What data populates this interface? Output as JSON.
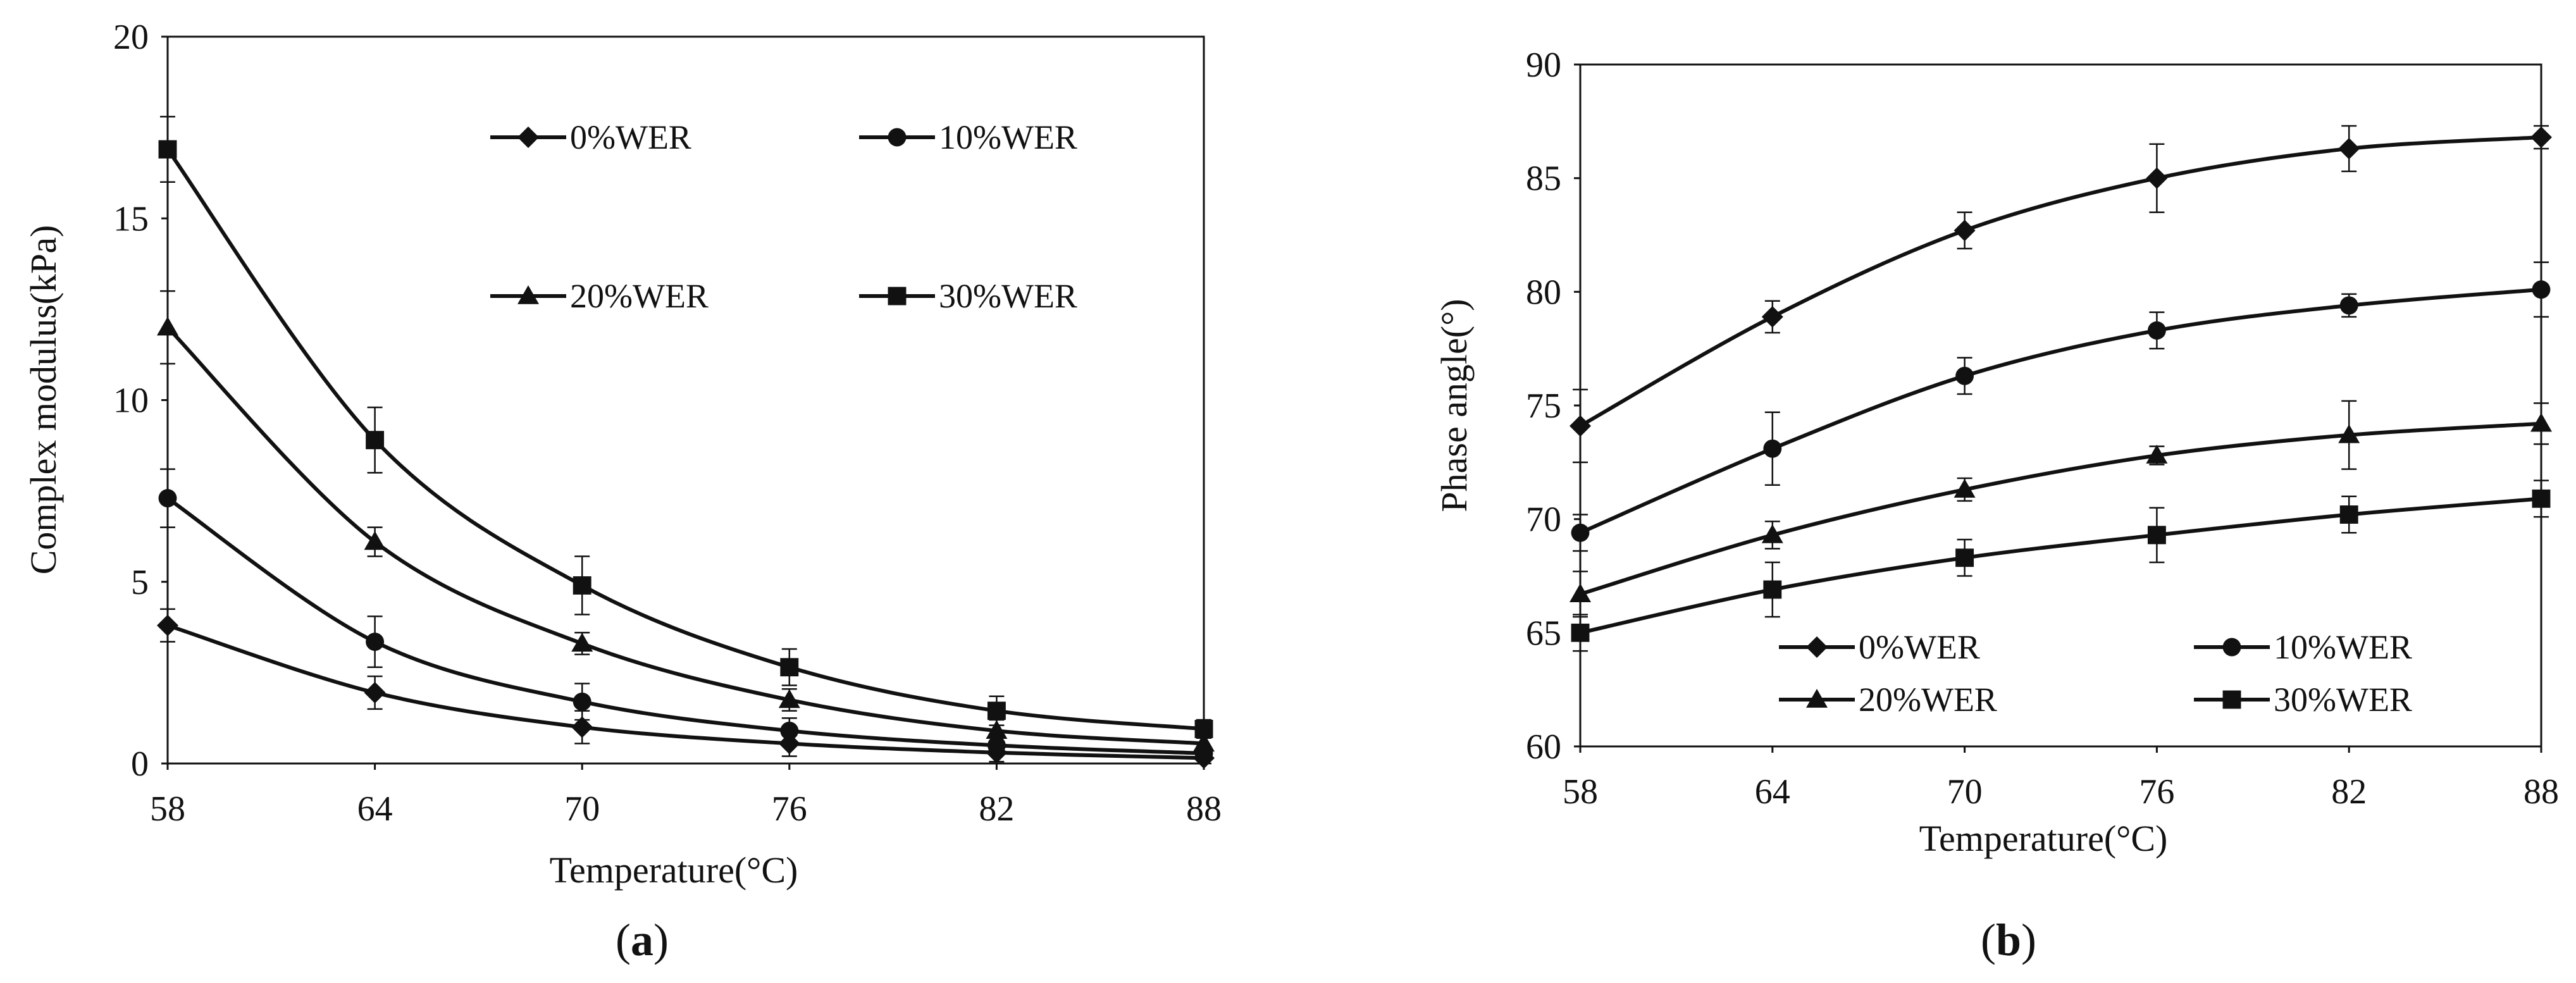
{
  "chart_data": [
    {
      "panel": "a",
      "type": "line",
      "xlabel": "Temperature(°C)",
      "ylabel": "Complex modulus(kPa)",
      "x": [
        58,
        64,
        70,
        76,
        82,
        88
      ],
      "xlim": [
        58,
        88
      ],
      "ylim": [
        0,
        20
      ],
      "yticks": [
        0,
        5,
        10,
        15,
        20
      ],
      "legend_position": "top-right",
      "series": [
        {
          "name": "0%WER",
          "marker": "diamond",
          "values": [
            3.8,
            1.95,
            1.0,
            0.55,
            0.3,
            0.15
          ],
          "errors": [
            0.45,
            0.45,
            0.45,
            0.35,
            0.25,
            0.15
          ]
        },
        {
          "name": "10%WER",
          "marker": "circle",
          "values": [
            7.3,
            3.35,
            1.7,
            0.9,
            0.5,
            0.28
          ],
          "errors": [
            0.8,
            0.7,
            0.5,
            0.35,
            0.25,
            0.15
          ]
        },
        {
          "name": "20%WER",
          "marker": "triangle",
          "values": [
            12.0,
            6.1,
            3.3,
            1.75,
            0.9,
            0.55
          ],
          "errors": [
            1.0,
            0.4,
            0.3,
            0.3,
            0.3,
            0.2
          ]
        },
        {
          "name": "30%WER",
          "marker": "square",
          "values": [
            16.9,
            8.9,
            4.9,
            2.65,
            1.45,
            0.95
          ],
          "errors": [
            0.9,
            0.9,
            0.8,
            0.5,
            0.4,
            0.25
          ]
        }
      ]
    },
    {
      "panel": "b",
      "type": "line",
      "xlabel": "Temperature(°C)",
      "ylabel": "Phase angle(°)",
      "x": [
        58,
        64,
        70,
        76,
        82,
        88
      ],
      "xlim": [
        58,
        88
      ],
      "ylim": [
        60,
        90
      ],
      "yticks": [
        60,
        65,
        70,
        75,
        80,
        85,
        90
      ],
      "legend_position": "bottom-right",
      "series": [
        {
          "name": "0%WER",
          "marker": "diamond",
          "values": [
            74.1,
            78.9,
            82.7,
            85.0,
            86.3,
            86.8
          ],
          "errors": [
            1.6,
            0.7,
            0.8,
            1.5,
            1.0,
            0.5
          ]
        },
        {
          "name": "10%WER",
          "marker": "circle",
          "values": [
            69.4,
            73.1,
            76.3,
            78.3,
            79.4,
            80.1
          ],
          "errors": [
            0.8,
            1.6,
            0.8,
            0.8,
            0.5,
            1.2
          ]
        },
        {
          "name": "20%WER",
          "marker": "triangle",
          "values": [
            66.7,
            69.3,
            71.3,
            72.8,
            73.7,
            74.2
          ],
          "errors": [
            1.0,
            0.6,
            0.5,
            0.4,
            1.5,
            0.9
          ]
        },
        {
          "name": "30%WER",
          "marker": "square",
          "values": [
            65.0,
            66.9,
            68.3,
            69.3,
            70.2,
            70.9
          ],
          "errors": [
            0.8,
            1.2,
            0.8,
            1.2,
            0.8,
            0.8
          ]
        }
      ]
    }
  ],
  "panel_labels": {
    "a": {
      "open": "(",
      "letter": "a",
      "close": ")"
    },
    "b": {
      "open": "(",
      "letter": "b",
      "close": ")"
    }
  },
  "colors": {
    "ink": "#111111",
    "background": "#ffffff"
  }
}
